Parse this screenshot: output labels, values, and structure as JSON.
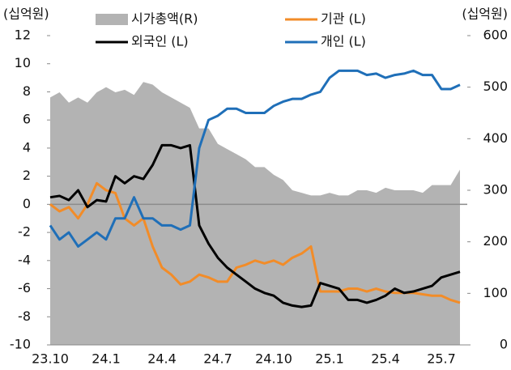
{
  "chart_data": {
    "type": "line",
    "y_label": "(십억원)",
    "y2_label": "(십억원)",
    "categories": [
      "23.10",
      null,
      null,
      null,
      null,
      null,
      "24.1",
      null,
      null,
      null,
      null,
      null,
      "24.4",
      null,
      null,
      null,
      null,
      null,
      "24.7",
      null,
      null,
      null,
      null,
      null,
      "24.10",
      null,
      null,
      null,
      null,
      null,
      "25.1",
      null,
      null,
      null,
      null,
      null,
      "25.4",
      null,
      null,
      null,
      null,
      null,
      "25.7",
      null,
      null
    ],
    "series": [
      {
        "name": "시가총액(R)",
        "type": "area",
        "axis": "y2",
        "color": "#b3b3b3",
        "values": [
          480,
          490,
          470,
          480,
          470,
          490,
          500,
          490,
          495,
          485,
          510,
          505,
          490,
          480,
          470,
          460,
          420,
          420,
          390,
          380,
          370,
          360,
          345,
          345,
          330,
          320,
          300,
          295,
          290,
          290,
          295,
          290,
          290,
          300,
          300,
          295,
          305,
          300,
          300,
          300,
          295,
          310,
          310,
          310,
          340
        ]
      },
      {
        "name": "기관 (L)",
        "color": "#f28c28",
        "values": [
          0,
          -0.5,
          -0.2,
          -1,
          0,
          1.5,
          1,
          0.8,
          -1,
          -1.5,
          -1,
          -3,
          -4.5,
          -5,
          -5.7,
          -5.5,
          -5,
          -5.2,
          -5.5,
          -5.5,
          -4.5,
          -4.3,
          -4,
          -4.2,
          -4,
          -4.3,
          -3.8,
          -3.5,
          -3,
          -6.2,
          -6.2,
          -6.2,
          -6,
          -6,
          -6.2,
          -6,
          -6.2,
          -6.3,
          -6.3,
          -6.3,
          -6.4,
          -6.5,
          -6.5,
          -6.8,
          -7
        ]
      },
      {
        "name": "외국인 (L)",
        "color": "#000000",
        "values": [
          0.5,
          0.6,
          0.3,
          1,
          -0.2,
          0.3,
          0.2,
          2,
          1.5,
          2,
          1.8,
          2.8,
          4.2,
          4.2,
          4,
          4.2,
          -1.5,
          -2.8,
          -3.8,
          -4.5,
          -5,
          -5.5,
          -6,
          -6.3,
          -6.5,
          -7,
          -7.2,
          -7.3,
          -7.2,
          -5.6,
          -5.8,
          -6,
          -6.8,
          -6.8,
          -7,
          -6.8,
          -6.5,
          -6,
          -6.3,
          -6.2,
          -6,
          -5.8,
          -5.2,
          -5,
          -4.8
        ]
      },
      {
        "name": "개인 (L)",
        "color": "#1f6fb8",
        "values": [
          -1.5,
          -2.5,
          -2,
          -3,
          -2.5,
          -2,
          -2.5,
          -1,
          -1,
          0.5,
          -1,
          -1,
          -1.5,
          -1.5,
          -1.8,
          -1.5,
          4,
          6,
          6.3,
          6.8,
          6.8,
          6.5,
          6.5,
          6.5,
          7,
          7.3,
          7.5,
          7.5,
          7.8,
          8,
          9,
          9.5,
          9.5,
          9.5,
          9.2,
          9.3,
          9,
          9.2,
          9.3,
          9.5,
          9.2,
          9.2,
          8.2,
          8.2,
          8.5
        ]
      }
    ],
    "ylim": [
      -10,
      12
    ],
    "yticks": [
      -10,
      -8,
      -6,
      -4,
      -2,
      0,
      2,
      4,
      6,
      8,
      10,
      12
    ],
    "y2lim": [
      0,
      600
    ],
    "y2ticks": [
      0,
      100,
      200,
      300,
      400,
      500,
      600
    ]
  }
}
